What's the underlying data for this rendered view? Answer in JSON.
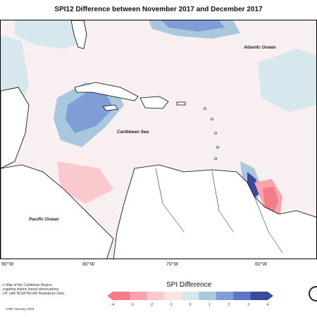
{
  "title": "SPI12 Difference between November 2017 and December 2017",
  "labels": {
    "atlantic": "Atlantic Ocean",
    "caribbean": "Caribbean Sea",
    "pacific": "Pacific Ocean"
  },
  "longitudes": [
    "90°W",
    "80°W",
    "70°W",
    "60°W"
  ],
  "note_lines": [
    "...n Map of the Caribbean Region.",
    "...regating station based observations,",
    "...OF, with NCEP/NCAR Reanalysis Data."
  ],
  "credit": "CIMH January-2018",
  "legend": {
    "title": "SPI Difference",
    "ticks": [
      "-4",
      "-3",
      "-2",
      "-1",
      "0",
      "1",
      "2",
      "3",
      "4"
    ],
    "colors": [
      "#f27d86",
      "#f6a5ac",
      "#f9c9ce",
      "#fbe2e5",
      "#d6e7ee",
      "#a9c8de",
      "#7f9ed7",
      "#5b76c4",
      "#3b4a9a"
    ]
  }
}
